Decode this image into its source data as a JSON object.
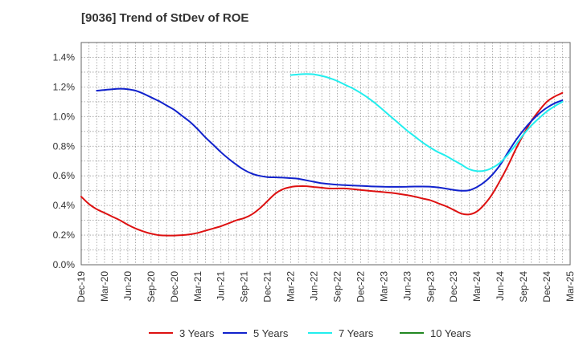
{
  "chart_data": {
    "type": "line",
    "title": "[9036]  Trend of StDev of ROE",
    "xlabel": "",
    "ylabel": "",
    "x_ticks": [
      "Dec-19",
      "Mar-20",
      "Jun-20",
      "Sep-20",
      "Dec-20",
      "Mar-21",
      "Jun-21",
      "Sep-21",
      "Dec-21",
      "Mar-22",
      "Jun-22",
      "Sep-22",
      "Dec-22",
      "Mar-23",
      "Jun-23",
      "Sep-23",
      "Dec-23",
      "Mar-24",
      "Jun-24",
      "Sep-24",
      "Dec-24",
      "Mar-25"
    ],
    "y_ticks": [
      "0.0%",
      "0.2%",
      "0.4%",
      "0.6%",
      "0.8%",
      "1.0%",
      "1.2%",
      "1.4%"
    ],
    "ylim": [
      0,
      1.5
    ],
    "y_unit": "%",
    "grid": true,
    "legend_position": "bottom",
    "series": [
      {
        "name": "3 Years",
        "color": "#dd1111",
        "points": [
          [
            "Dec-19",
            0.46
          ],
          [
            "Jan-20",
            0.41
          ],
          [
            "Feb-20",
            0.375
          ],
          [
            "Mar-20",
            0.35
          ],
          [
            "Apr-20",
            0.325
          ],
          [
            "May-20",
            0.3
          ],
          [
            "Jun-20",
            0.27
          ],
          [
            "Jul-20",
            0.245
          ],
          [
            "Aug-20",
            0.225
          ],
          [
            "Sep-20",
            0.21
          ],
          [
            "Oct-20",
            0.2
          ],
          [
            "Nov-20",
            0.197
          ],
          [
            "Dec-20",
            0.197
          ],
          [
            "Jan-21",
            0.2
          ],
          [
            "Feb-21",
            0.205
          ],
          [
            "Mar-21",
            0.215
          ],
          [
            "Apr-21",
            0.23
          ],
          [
            "May-21",
            0.245
          ],
          [
            "Jun-21",
            0.26
          ],
          [
            "Jul-21",
            0.28
          ],
          [
            "Aug-21",
            0.3
          ],
          [
            "Sep-21",
            0.315
          ],
          [
            "Oct-21",
            0.34
          ],
          [
            "Nov-21",
            0.38
          ],
          [
            "Dec-21",
            0.43
          ],
          [
            "Jan-22",
            0.48
          ],
          [
            "Feb-22",
            0.51
          ],
          [
            "Mar-22",
            0.525
          ],
          [
            "Apr-22",
            0.53
          ],
          [
            "May-22",
            0.53
          ],
          [
            "Jun-22",
            0.525
          ],
          [
            "Jul-22",
            0.52
          ],
          [
            "Aug-22",
            0.515
          ],
          [
            "Sep-22",
            0.515
          ],
          [
            "Oct-22",
            0.515
          ],
          [
            "Nov-22",
            0.51
          ],
          [
            "Dec-22",
            0.505
          ],
          [
            "Jan-23",
            0.5
          ],
          [
            "Feb-23",
            0.495
          ],
          [
            "Mar-23",
            0.49
          ],
          [
            "Apr-23",
            0.485
          ],
          [
            "May-23",
            0.478
          ],
          [
            "Jun-23",
            0.47
          ],
          [
            "Jul-23",
            0.46
          ],
          [
            "Aug-23",
            0.447
          ],
          [
            "Sep-23",
            0.435
          ],
          [
            "Oct-23",
            0.415
          ],
          [
            "Nov-23",
            0.395
          ],
          [
            "Dec-23",
            0.37
          ],
          [
            "Jan-24",
            0.345
          ],
          [
            "Feb-24",
            0.34
          ],
          [
            "Mar-24",
            0.36
          ],
          [
            "Apr-24",
            0.41
          ],
          [
            "May-24",
            0.48
          ],
          [
            "Jun-24",
            0.57
          ],
          [
            "Jul-24",
            0.67
          ],
          [
            "Aug-24",
            0.78
          ],
          [
            "Sep-24",
            0.88
          ],
          [
            "Oct-24",
            0.97
          ],
          [
            "Nov-24",
            1.04
          ],
          [
            "Dec-24",
            1.1
          ],
          [
            "Jan-25",
            1.135
          ],
          [
            "Feb-25",
            1.16
          ]
        ]
      },
      {
        "name": "5 Years",
        "color": "#1122cc",
        "points": [
          [
            "Feb-20",
            1.175
          ],
          [
            "Mar-20",
            1.18
          ],
          [
            "Apr-20",
            1.185
          ],
          [
            "May-20",
            1.188
          ],
          [
            "Jun-20",
            1.185
          ],
          [
            "Jul-20",
            1.175
          ],
          [
            "Aug-20",
            1.155
          ],
          [
            "Sep-20",
            1.13
          ],
          [
            "Oct-20",
            1.105
          ],
          [
            "Nov-20",
            1.075
          ],
          [
            "Dec-20",
            1.045
          ],
          [
            "Jan-21",
            1.005
          ],
          [
            "Feb-21",
            0.965
          ],
          [
            "Mar-21",
            0.915
          ],
          [
            "Apr-21",
            0.86
          ],
          [
            "May-21",
            0.81
          ],
          [
            "Jun-21",
            0.76
          ],
          [
            "Jul-21",
            0.715
          ],
          [
            "Aug-21",
            0.675
          ],
          [
            "Sep-21",
            0.64
          ],
          [
            "Oct-21",
            0.615
          ],
          [
            "Nov-21",
            0.6
          ],
          [
            "Dec-21",
            0.592
          ],
          [
            "Jan-22",
            0.59
          ],
          [
            "Feb-22",
            0.588
          ],
          [
            "Mar-22",
            0.585
          ],
          [
            "Apr-22",
            0.58
          ],
          [
            "May-22",
            0.57
          ],
          [
            "Jun-22",
            0.56
          ],
          [
            "Jul-22",
            0.55
          ],
          [
            "Aug-22",
            0.545
          ],
          [
            "Sep-22",
            0.54
          ],
          [
            "Oct-22",
            0.537
          ],
          [
            "Nov-22",
            0.535
          ],
          [
            "Dec-22",
            0.533
          ],
          [
            "Jan-23",
            0.53
          ],
          [
            "Feb-23",
            0.528
          ],
          [
            "Mar-23",
            0.527
          ],
          [
            "Apr-23",
            0.526
          ],
          [
            "May-23",
            0.526
          ],
          [
            "Jun-23",
            0.527
          ],
          [
            "Jul-23",
            0.528
          ],
          [
            "Aug-23",
            0.528
          ],
          [
            "Sep-23",
            0.527
          ],
          [
            "Oct-23",
            0.522
          ],
          [
            "Nov-23",
            0.514
          ],
          [
            "Dec-23",
            0.505
          ],
          [
            "Jan-24",
            0.5
          ],
          [
            "Feb-24",
            0.503
          ],
          [
            "Mar-24",
            0.525
          ],
          [
            "Apr-24",
            0.56
          ],
          [
            "May-24",
            0.61
          ],
          [
            "Jun-24",
            0.675
          ],
          [
            "Jul-24",
            0.76
          ],
          [
            "Aug-24",
            0.84
          ],
          [
            "Sep-24",
            0.91
          ],
          [
            "Oct-24",
            0.97
          ],
          [
            "Nov-24",
            1.02
          ],
          [
            "Dec-24",
            1.06
          ],
          [
            "Jan-25",
            1.09
          ],
          [
            "Feb-25",
            1.11
          ]
        ]
      },
      {
        "name": "7 Years",
        "color": "#22eeee",
        "points": [
          [
            "Mar-22",
            1.28
          ],
          [
            "Apr-22",
            1.285
          ],
          [
            "May-22",
            1.287
          ],
          [
            "Jun-22",
            1.285
          ],
          [
            "Jul-22",
            1.275
          ],
          [
            "Aug-22",
            1.26
          ],
          [
            "Sep-22",
            1.24
          ],
          [
            "Oct-22",
            1.215
          ],
          [
            "Nov-22",
            1.19
          ],
          [
            "Dec-22",
            1.16
          ],
          [
            "Jan-23",
            1.125
          ],
          [
            "Feb-23",
            1.085
          ],
          [
            "Mar-23",
            1.04
          ],
          [
            "Apr-23",
            0.995
          ],
          [
            "May-23",
            0.95
          ],
          [
            "Jun-23",
            0.905
          ],
          [
            "Jul-23",
            0.865
          ],
          [
            "Aug-23",
            0.825
          ],
          [
            "Sep-23",
            0.79
          ],
          [
            "Oct-23",
            0.76
          ],
          [
            "Nov-23",
            0.735
          ],
          [
            "Dec-23",
            0.705
          ],
          [
            "Jan-24",
            0.675
          ],
          [
            "Feb-24",
            0.645
          ],
          [
            "Mar-24",
            0.632
          ],
          [
            "Apr-24",
            0.635
          ],
          [
            "May-24",
            0.655
          ],
          [
            "Jun-24",
            0.69
          ],
          [
            "Jul-24",
            0.745
          ],
          [
            "Aug-24",
            0.81
          ],
          [
            "Sep-24",
            0.88
          ],
          [
            "Oct-24",
            0.94
          ],
          [
            "Nov-24",
            0.99
          ],
          [
            "Dec-24",
            1.035
          ],
          [
            "Jan-25",
            1.07
          ],
          [
            "Feb-25",
            1.1
          ]
        ]
      },
      {
        "name": "10 Years",
        "color": "#228822",
        "points": []
      }
    ]
  }
}
